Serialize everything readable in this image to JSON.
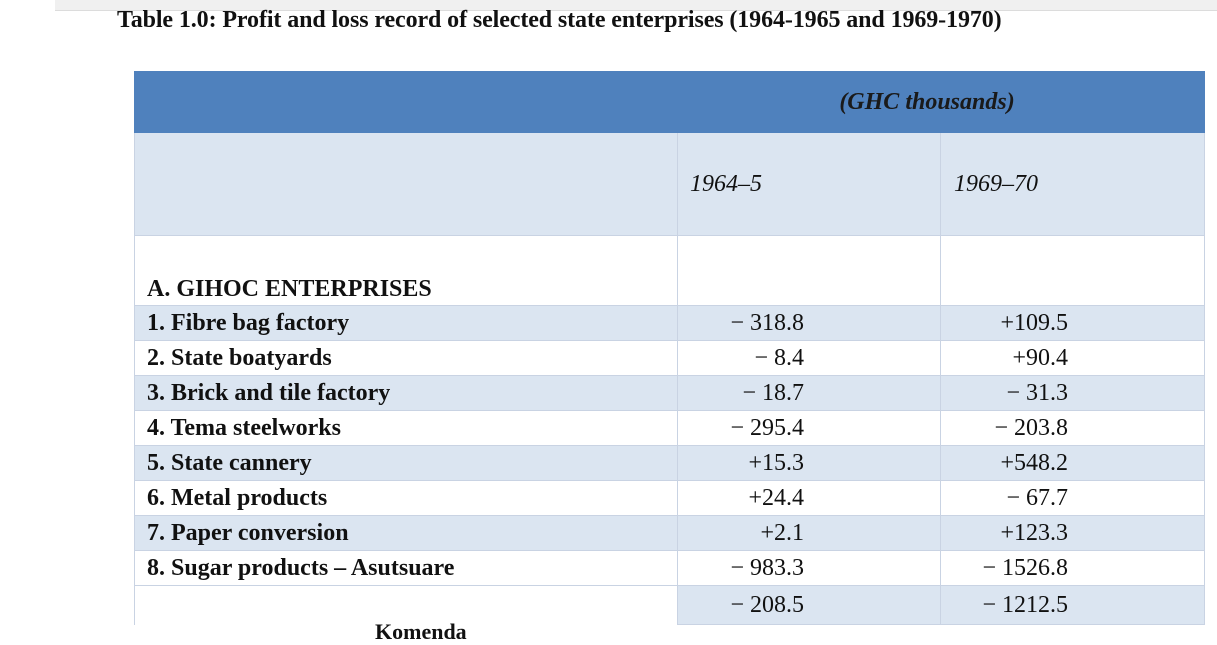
{
  "title": "Table 1.0: Profit and loss record of selected state enterprises (1964-1965 and 1969-1970)",
  "unit_label": "(GHC thousands)",
  "columns": [
    "1964–5",
    "1969–70"
  ],
  "section": "A. GIHOC ENTERPRISES",
  "rows": [
    {
      "label": "1. Fibre bag factory",
      "v1": "− 318.8",
      "v2": "+109.5"
    },
    {
      "label": "2. State boatyards",
      "v1": "− 8.4",
      "v2": "+90.4"
    },
    {
      "label": "3. Brick and tile factory",
      "v1": "− 18.7",
      "v2": "− 31.3"
    },
    {
      "label": "4. Tema steelworks",
      "v1": "− 295.4",
      "v2": "− 203.8"
    },
    {
      "label": "5. State cannery",
      "v1": "+15.3",
      "v2": "+548.2"
    },
    {
      "label": "6. Metal products",
      "v1": "+24.4",
      "v2": "− 67.7"
    },
    {
      "label": "7. Paper conversion",
      "v1": "+2.1",
      "v2": "+123.3"
    },
    {
      "label": "8. Sugar products – Asutsuare",
      "v1": "− 983.3",
      "v2": "− 1526.8"
    }
  ],
  "extra_row": {
    "v1": "− 208.5",
    "v2": "− 1212.5"
  },
  "sub_label": "Komenda"
}
